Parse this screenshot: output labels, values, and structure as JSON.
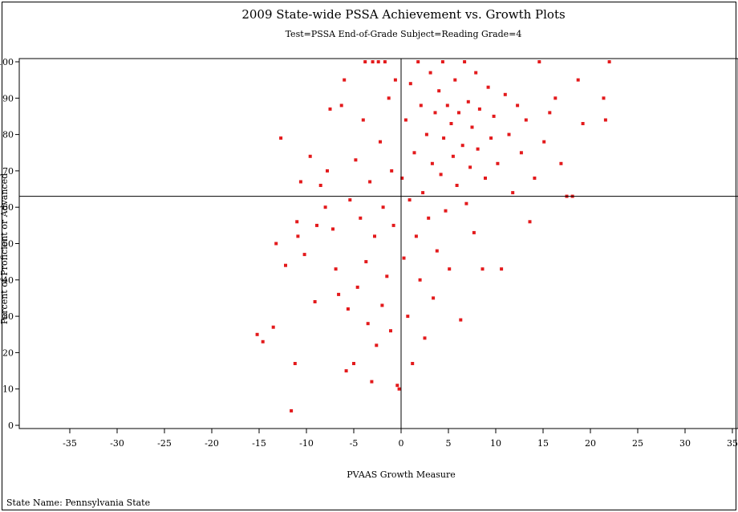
{
  "chart_data": {
    "type": "scatter",
    "title": "2009 State-wide PSSA Achievement vs. Growth Plots",
    "subtitle": "Test=PSSA End-of-Grade Subject=Reading Grade=4",
    "xlabel": "PVAAS Growth Measure",
    "ylabel": "Percent of Proficient or Advanced",
    "xlim": [
      -35,
      35
    ],
    "ylim": [
      0,
      100
    ],
    "x_ticks": [
      -35,
      -30,
      -25,
      -20,
      -15,
      -10,
      -5,
      0,
      5,
      10,
      15,
      20,
      25,
      30,
      35
    ],
    "y_ticks": [
      0,
      10,
      20,
      30,
      40,
      50,
      60,
      70,
      80,
      90,
      100
    ],
    "reference_lines": {
      "x": 0,
      "y": 63
    },
    "point_color": "#e31a1c",
    "grid": false,
    "legend": "none",
    "footnote": "State Name: Pennsylvania State",
    "series": [
      {
        "points": [
          [
            -15.2,
            25
          ],
          [
            -14.6,
            23
          ],
          [
            -13.5,
            27
          ],
          [
            -13.2,
            50
          ],
          [
            -12.7,
            79
          ],
          [
            -12.2,
            44
          ],
          [
            -11.6,
            4
          ],
          [
            -11.2,
            17
          ],
          [
            -11.0,
            56
          ],
          [
            -10.9,
            52
          ],
          [
            -10.6,
            67
          ],
          [
            -10.2,
            47
          ],
          [
            -9.6,
            74
          ],
          [
            -9.1,
            34
          ],
          [
            -8.9,
            55
          ],
          [
            -8.5,
            66
          ],
          [
            -8.0,
            60
          ],
          [
            -7.8,
            70
          ],
          [
            -7.5,
            87
          ],
          [
            -7.2,
            54
          ],
          [
            -6.9,
            43
          ],
          [
            -6.6,
            36
          ],
          [
            -6.3,
            88
          ],
          [
            -6.0,
            95
          ],
          [
            -5.8,
            15
          ],
          [
            -5.6,
            32
          ],
          [
            -5.4,
            62
          ],
          [
            -5.0,
            17
          ],
          [
            -4.8,
            73
          ],
          [
            -4.6,
            38
          ],
          [
            -4.3,
            57
          ],
          [
            -4.0,
            84
          ],
          [
            -3.8,
            100
          ],
          [
            -3.7,
            45
          ],
          [
            -3.5,
            28
          ],
          [
            -3.3,
            67
          ],
          [
            -3.1,
            12
          ],
          [
            -3.0,
            100
          ],
          [
            -2.8,
            52
          ],
          [
            -2.6,
            22
          ],
          [
            -2.4,
            100
          ],
          [
            -2.2,
            78
          ],
          [
            -2.0,
            33
          ],
          [
            -1.9,
            60
          ],
          [
            -1.7,
            100
          ],
          [
            -1.5,
            41
          ],
          [
            -1.3,
            90
          ],
          [
            -1.1,
            26
          ],
          [
            -1.0,
            70
          ],
          [
            -0.8,
            55
          ],
          [
            -0.6,
            95
          ],
          [
            -0.4,
            11
          ],
          [
            -0.2,
            10
          ],
          [
            0.1,
            68
          ],
          [
            0.3,
            46
          ],
          [
            0.5,
            84
          ],
          [
            0.7,
            30
          ],
          [
            0.9,
            62
          ],
          [
            1.0,
            94
          ],
          [
            1.2,
            17
          ],
          [
            1.4,
            75
          ],
          [
            1.6,
            52
          ],
          [
            1.8,
            100
          ],
          [
            2.0,
            40
          ],
          [
            2.1,
            88
          ],
          [
            2.3,
            64
          ],
          [
            2.5,
            24
          ],
          [
            2.7,
            80
          ],
          [
            2.9,
            57
          ],
          [
            3.1,
            97
          ],
          [
            3.3,
            72
          ],
          [
            3.4,
            35
          ],
          [
            3.6,
            86
          ],
          [
            3.8,
            48
          ],
          [
            4.0,
            92
          ],
          [
            4.2,
            69
          ],
          [
            4.4,
            100
          ],
          [
            4.5,
            79
          ],
          [
            4.7,
            59
          ],
          [
            4.9,
            88
          ],
          [
            5.1,
            43
          ],
          [
            5.3,
            83
          ],
          [
            5.5,
            74
          ],
          [
            5.7,
            95
          ],
          [
            5.9,
            66
          ],
          [
            6.1,
            86
          ],
          [
            6.3,
            29
          ],
          [
            6.5,
            77
          ],
          [
            6.7,
            100
          ],
          [
            6.9,
            61
          ],
          [
            7.1,
            89
          ],
          [
            7.3,
            71
          ],
          [
            7.5,
            82
          ],
          [
            7.7,
            53
          ],
          [
            7.9,
            97
          ],
          [
            8.1,
            76
          ],
          [
            8.3,
            87
          ],
          [
            8.6,
            43
          ],
          [
            8.9,
            68
          ],
          [
            9.2,
            93
          ],
          [
            9.5,
            79
          ],
          [
            9.8,
            85
          ],
          [
            10.2,
            72
          ],
          [
            10.6,
            43
          ],
          [
            11.0,
            91
          ],
          [
            11.4,
            80
          ],
          [
            11.8,
            64
          ],
          [
            12.3,
            88
          ],
          [
            12.7,
            75
          ],
          [
            13.2,
            84
          ],
          [
            13.6,
            56
          ],
          [
            14.1,
            68
          ],
          [
            14.6,
            100
          ],
          [
            15.1,
            78
          ],
          [
            15.7,
            86
          ],
          [
            16.3,
            90
          ],
          [
            16.9,
            72
          ],
          [
            17.5,
            63
          ],
          [
            18.1,
            63
          ],
          [
            18.7,
            95
          ],
          [
            19.2,
            83
          ],
          [
            21.4,
            90
          ],
          [
            21.6,
            84
          ],
          [
            22.0,
            100
          ]
        ]
      }
    ]
  }
}
